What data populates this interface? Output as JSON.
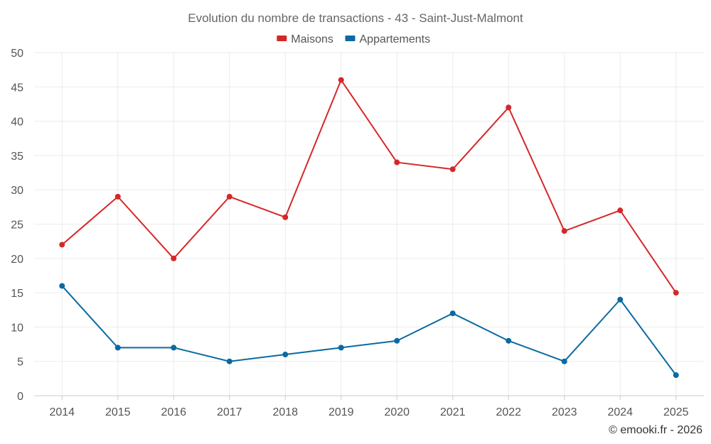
{
  "chart_data": {
    "type": "line",
    "title": "Evolution du nombre de transactions - 43 - Saint-Just-Malmont",
    "categories": [
      "2014",
      "2015",
      "2016",
      "2017",
      "2018",
      "2019",
      "2020",
      "2021",
      "2022",
      "2023",
      "2024",
      "2025"
    ],
    "series": [
      {
        "name": "Maisons",
        "color": "#d62728",
        "values": [
          22,
          29,
          20,
          29,
          26,
          46,
          34,
          33,
          42,
          24,
          27,
          15
        ]
      },
      {
        "name": "Appartements",
        "color": "#0a6aa1",
        "values": [
          16,
          7,
          7,
          5,
          6,
          7,
          8,
          12,
          8,
          5,
          14,
          3
        ]
      }
    ],
    "ylim": [
      0,
      50
    ],
    "yticks": [
      0,
      5,
      10,
      15,
      20,
      25,
      30,
      35,
      40,
      45,
      50
    ],
    "grid": true,
    "legend": "top-center",
    "xlabel": "",
    "ylabel": ""
  },
  "credit": "© emooki.fr - 2026"
}
